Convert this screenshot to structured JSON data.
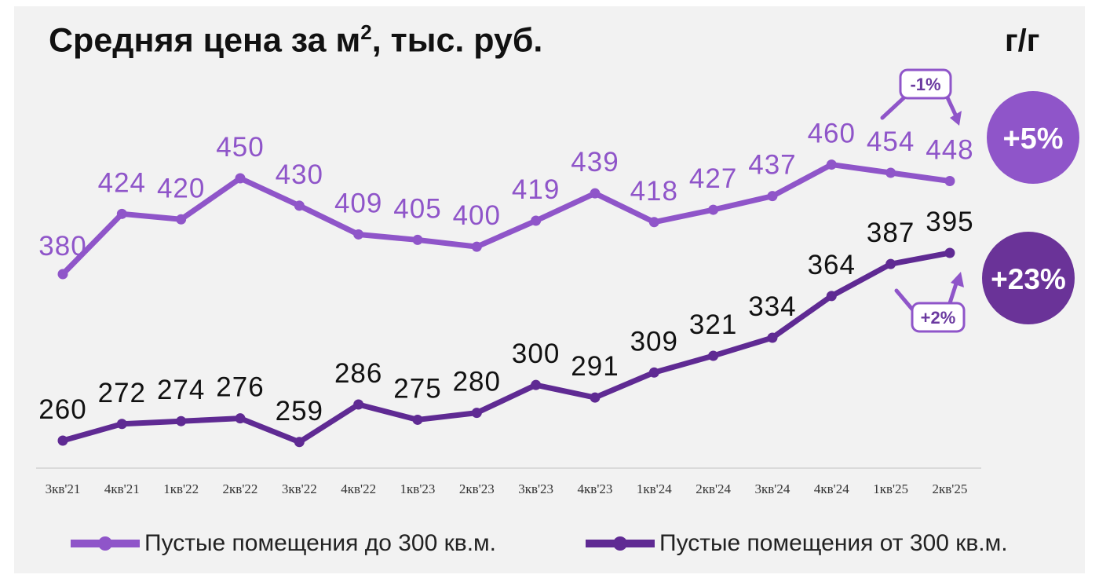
{
  "title": {
    "main": "Средняя цена за м",
    "sup": "2",
    "rest": ", тыс. руб."
  },
  "yoy_label": "г/г",
  "colors": {
    "light": "#8f55c9",
    "dark": "#5f2a93",
    "bubble_light": "#8f55c9",
    "bubble_dark": "#6a3398"
  },
  "badges": {
    "series1_yoy": "+5%",
    "series2_yoy": "+23%",
    "series1_qoq": "-1%",
    "series2_qoq": "+2%"
  },
  "chart_data": {
    "type": "line",
    "categories": [
      "3кв'21",
      "4кв'21",
      "1кв'22",
      "2кв'22",
      "3кв'22",
      "4кв'22",
      "1кв'23",
      "2кв'23",
      "3кв'23",
      "4кв'23",
      "1кв'24",
      "2кв'24",
      "3кв'24",
      "4кв'24",
      "1кв'25",
      "2кв'25"
    ],
    "series": [
      {
        "name": "Пустые помещения до 300 кв.м.",
        "color": "#8f55c9",
        "values": [
          380,
          424,
          420,
          450,
          430,
          409,
          405,
          400,
          419,
          439,
          418,
          427,
          437,
          460,
          454,
          448
        ]
      },
      {
        "name": "Пустые помещения от 300 кв.м.",
        "color": "#5f2a93",
        "values": [
          260,
          272,
          274,
          276,
          259,
          286,
          275,
          280,
          300,
          291,
          309,
          321,
          334,
          364,
          387,
          395
        ]
      }
    ],
    "legend_position": "bottom",
    "grid": false
  }
}
